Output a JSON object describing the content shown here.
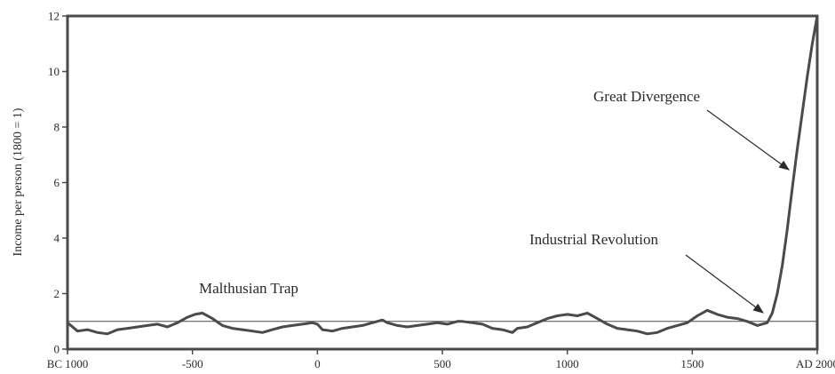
{
  "chart_data": {
    "type": "line",
    "title": "",
    "ylabel": "Income per person (1800 = 1)",
    "xlabel": "",
    "xlim": [
      -1000,
      2000
    ],
    "ylim": [
      0,
      12
    ],
    "x_ticks": [
      {
        "value": -1000,
        "label": "BC 1000"
      },
      {
        "value": -500,
        "label": "-500"
      },
      {
        "value": 0,
        "label": "0"
      },
      {
        "value": 500,
        "label": "500"
      },
      {
        "value": 1000,
        "label": "1000"
      },
      {
        "value": 1500,
        "label": "1500"
      },
      {
        "value": 2000,
        "label": "AD 2000"
      }
    ],
    "y_ticks": [
      0,
      2,
      4,
      6,
      8,
      10,
      12
    ],
    "reference_line": {
      "y": 1
    },
    "grid": false,
    "colors": {
      "series": "#4a4a4a",
      "axis": "#4a4a4a",
      "text": "#2a2a2a"
    },
    "series": [
      {
        "x": [
          -1000,
          -960,
          -920,
          -880,
          -840,
          -800,
          -760,
          -720,
          -680,
          -640,
          -600,
          -560,
          -520,
          -490,
          -460,
          -420,
          -380,
          -340,
          -300,
          -260,
          -220,
          -180,
          -140,
          -100,
          -60,
          -20,
          0,
          20,
          60,
          100,
          140,
          180,
          220,
          260,
          280,
          320,
          360,
          400,
          440,
          480,
          520,
          560,
          580,
          620,
          660,
          700,
          740,
          780,
          800,
          840,
          880,
          920,
          960,
          1000,
          1040,
          1080,
          1120,
          1160,
          1200,
          1240,
          1280,
          1320,
          1360,
          1400,
          1440,
          1480,
          1520,
          1560,
          1600,
          1640,
          1680,
          1720,
          1760,
          1800,
          1820,
          1840,
          1860,
          1880,
          1900,
          1920,
          1940,
          1960,
          1980,
          2000
        ],
        "y": [
          0.95,
          0.65,
          0.7,
          0.6,
          0.55,
          0.7,
          0.75,
          0.8,
          0.85,
          0.9,
          0.8,
          0.95,
          1.15,
          1.25,
          1.3,
          1.1,
          0.85,
          0.75,
          0.7,
          0.65,
          0.6,
          0.7,
          0.8,
          0.85,
          0.9,
          0.95,
          0.9,
          0.7,
          0.65,
          0.75,
          0.8,
          0.85,
          0.95,
          1.05,
          0.95,
          0.85,
          0.8,
          0.85,
          0.9,
          0.95,
          0.9,
          1.0,
          1.0,
          0.95,
          0.9,
          0.75,
          0.7,
          0.6,
          0.75,
          0.8,
          0.95,
          1.1,
          1.2,
          1.25,
          1.2,
          1.3,
          1.1,
          0.9,
          0.75,
          0.7,
          0.65,
          0.55,
          0.6,
          0.75,
          0.85,
          0.95,
          1.2,
          1.4,
          1.25,
          1.15,
          1.1,
          1.0,
          0.85,
          0.95,
          1.3,
          2.0,
          3.0,
          4.3,
          5.8,
          7.2,
          8.5,
          9.8,
          11.0,
          12.0
        ]
      }
    ],
    "annotations": [
      {
        "text": "Malthusian Trap"
      },
      {
        "text": "Industrial Revolution",
        "points_to": {
          "x": 1780,
          "y": 1.1
        }
      },
      {
        "text": "Great Divergence",
        "points_to": {
          "x": 1930,
          "y": 6.5
        }
      }
    ]
  }
}
